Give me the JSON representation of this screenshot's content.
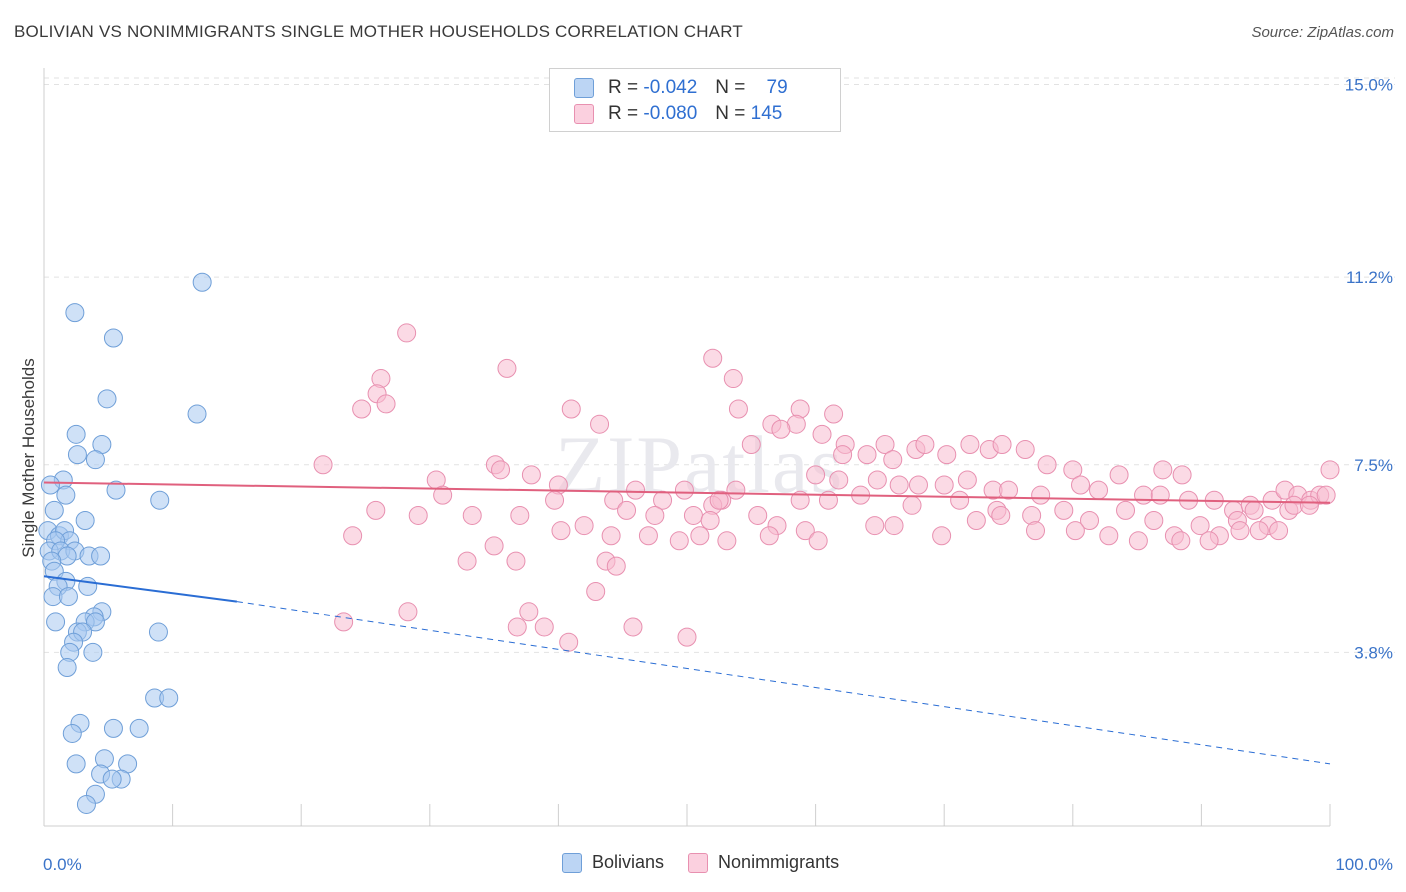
{
  "title": "BOLIVIAN VS NONIMMIGRANTS SINGLE MOTHER HOUSEHOLDS CORRELATION CHART",
  "source": "Source: ZipAtlas.com",
  "watermark": "ZIPatlas",
  "legend": {
    "rows": [
      {
        "r_label": "R =",
        "r_value": "-0.042",
        "n_label": "N =",
        "n_value": "79",
        "color": "#a8c8f0",
        "stroke": "#6f9fd8"
      },
      {
        "r_label": "R =",
        "r_value": "-0.080",
        "n_label": "N =",
        "n_value": "145",
        "color": "#f8bcd0",
        "stroke": "#e890b0"
      }
    ]
  },
  "bottom_legend": [
    "Bolivians",
    "Nonimmigrants"
  ],
  "chart_data": {
    "type": "scatter",
    "title": "BOLIVIAN VS NONIMMIGRANTS SINGLE MOTHER HOUSEHOLDS CORRELATION CHART",
    "xlabel": "",
    "ylabel": "Single Mother Households",
    "xlim": [
      0,
      100
    ],
    "ylim": [
      0,
      15.5
    ],
    "x_tick_labels": [
      "0.0%",
      "100.0%"
    ],
    "y_ticks": [
      3.8,
      7.5,
      11.2,
      15.0
    ],
    "y_tick_labels": [
      "3.8%",
      "7.5%",
      "11.2%",
      "15.0%"
    ],
    "grid": "horizontal dashed",
    "legend_position": "top-center",
    "series": [
      {
        "name": "Bolivians",
        "color": "#a8c8f0",
        "stroke": "#6f9fd8",
        "trend": {
          "x0": 0,
          "y0": 5.3,
          "x1": 15,
          "y1": 4.8,
          "dash_to_x": 100,
          "dash_to_y": 1.6,
          "color": "#2a6dd4"
        },
        "points": [
          [
            12.3,
            11.1
          ],
          [
            2.4,
            10.5
          ],
          [
            5.4,
            10.0
          ],
          [
            4.9,
            8.8
          ],
          [
            11.9,
            8.5
          ],
          [
            2.5,
            8.1
          ],
          [
            4.5,
            7.9
          ],
          [
            2.6,
            7.7
          ],
          [
            4.0,
            7.6
          ],
          [
            1.5,
            7.2
          ],
          [
            5.6,
            7.0
          ],
          [
            1.7,
            6.9
          ],
          [
            9.0,
            6.8
          ],
          [
            0.5,
            7.1
          ],
          [
            0.8,
            6.6
          ],
          [
            3.2,
            6.4
          ],
          [
            0.3,
            6.2
          ],
          [
            1.2,
            6.1
          ],
          [
            1.6,
            6.2
          ],
          [
            2.0,
            6.0
          ],
          [
            0.9,
            6.0
          ],
          [
            0.4,
            5.8
          ],
          [
            1.3,
            5.8
          ],
          [
            2.4,
            5.8
          ],
          [
            1.8,
            5.7
          ],
          [
            0.6,
            5.6
          ],
          [
            3.5,
            5.7
          ],
          [
            4.4,
            5.7
          ],
          [
            0.8,
            5.4
          ],
          [
            1.7,
            5.2
          ],
          [
            1.1,
            5.1
          ],
          [
            3.4,
            5.1
          ],
          [
            0.7,
            4.9
          ],
          [
            1.9,
            4.9
          ],
          [
            4.5,
            4.6
          ],
          [
            3.9,
            4.5
          ],
          [
            3.2,
            4.4
          ],
          [
            4.0,
            4.4
          ],
          [
            0.9,
            4.4
          ],
          [
            2.6,
            4.2
          ],
          [
            3.0,
            4.2
          ],
          [
            8.9,
            4.2
          ],
          [
            2.3,
            4.0
          ],
          [
            2.0,
            3.8
          ],
          [
            3.8,
            3.8
          ],
          [
            1.8,
            3.5
          ],
          [
            8.6,
            2.9
          ],
          [
            9.7,
            2.9
          ],
          [
            2.8,
            2.4
          ],
          [
            5.4,
            2.3
          ],
          [
            7.4,
            2.3
          ],
          [
            2.2,
            2.2
          ],
          [
            4.7,
            1.7
          ],
          [
            2.5,
            1.6
          ],
          [
            6.5,
            1.6
          ],
          [
            4.4,
            1.4
          ],
          [
            6.0,
            1.3
          ],
          [
            5.3,
            1.3
          ],
          [
            4.0,
            1.0
          ],
          [
            3.3,
            0.8
          ]
        ]
      },
      {
        "name": "Nonimmigrants",
        "color": "#f8bcd0",
        "stroke": "#e890b0",
        "trend": {
          "x0": 0,
          "y0": 7.15,
          "x1": 100,
          "y1": 6.75,
          "color": "#e0607e"
        },
        "points": [
          [
            28.2,
            10.1
          ],
          [
            52.0,
            9.6
          ],
          [
            36.0,
            9.4
          ],
          [
            26.2,
            9.2
          ],
          [
            53.6,
            9.2
          ],
          [
            25.9,
            8.9
          ],
          [
            26.6,
            8.7
          ],
          [
            24.7,
            8.6
          ],
          [
            41.0,
            8.6
          ],
          [
            54.0,
            8.6
          ],
          [
            58.8,
            8.6
          ],
          [
            61.4,
            8.5
          ],
          [
            43.2,
            8.3
          ],
          [
            56.6,
            8.3
          ],
          [
            58.5,
            8.3
          ],
          [
            57.3,
            8.2
          ],
          [
            60.5,
            8.1
          ],
          [
            55.0,
            7.9
          ],
          [
            62.3,
            7.9
          ],
          [
            65.4,
            7.9
          ],
          [
            67.8,
            7.8
          ],
          [
            68.5,
            7.9
          ],
          [
            72.0,
            7.9
          ],
          [
            73.5,
            7.8
          ],
          [
            74.5,
            7.9
          ],
          [
            76.3,
            7.8
          ],
          [
            62.1,
            7.7
          ],
          [
            64.0,
            7.7
          ],
          [
            66.0,
            7.6
          ],
          [
            70.2,
            7.7
          ],
          [
            78.0,
            7.5
          ],
          [
            80.0,
            7.4
          ],
          [
            83.6,
            7.3
          ],
          [
            87.0,
            7.4
          ],
          [
            88.5,
            7.3
          ],
          [
            100.0,
            7.4
          ],
          [
            21.7,
            7.5
          ],
          [
            35.1,
            7.5
          ],
          [
            35.5,
            7.4
          ],
          [
            37.9,
            7.3
          ],
          [
            60.0,
            7.3
          ],
          [
            61.8,
            7.2
          ],
          [
            64.8,
            7.2
          ],
          [
            66.5,
            7.1
          ],
          [
            68.0,
            7.1
          ],
          [
            70.0,
            7.1
          ],
          [
            71.8,
            7.2
          ],
          [
            73.8,
            7.0
          ],
          [
            75.0,
            7.0
          ],
          [
            77.5,
            6.9
          ],
          [
            80.6,
            7.1
          ],
          [
            82.0,
            7.0
          ],
          [
            85.5,
            6.9
          ],
          [
            86.8,
            6.9
          ],
          [
            89.0,
            6.8
          ],
          [
            91.0,
            6.8
          ],
          [
            92.5,
            6.6
          ],
          [
            93.8,
            6.7
          ],
          [
            95.5,
            6.8
          ],
          [
            96.5,
            7.0
          ],
          [
            97.5,
            6.9
          ],
          [
            98.5,
            6.8
          ],
          [
            99.2,
            6.9
          ],
          [
            30.5,
            7.2
          ],
          [
            40.0,
            7.1
          ],
          [
            46.0,
            7.0
          ],
          [
            49.8,
            7.0
          ],
          [
            53.8,
            7.0
          ],
          [
            58.8,
            6.8
          ],
          [
            52.7,
            6.8
          ],
          [
            31.0,
            6.9
          ],
          [
            39.7,
            6.8
          ],
          [
            44.3,
            6.8
          ],
          [
            48.1,
            6.8
          ],
          [
            52.0,
            6.7
          ],
          [
            61.0,
            6.8
          ],
          [
            63.5,
            6.9
          ],
          [
            67.5,
            6.7
          ],
          [
            71.2,
            6.8
          ],
          [
            74.1,
            6.6
          ],
          [
            76.8,
            6.5
          ],
          [
            79.3,
            6.6
          ],
          [
            81.3,
            6.4
          ],
          [
            84.1,
            6.6
          ],
          [
            86.3,
            6.4
          ],
          [
            87.9,
            6.1
          ],
          [
            89.9,
            6.3
          ],
          [
            91.4,
            6.1
          ],
          [
            92.8,
            6.4
          ],
          [
            94.1,
            6.6
          ],
          [
            95.2,
            6.3
          ],
          [
            96.8,
            6.6
          ],
          [
            97.2,
            6.7
          ],
          [
            98.4,
            6.7
          ],
          [
            99.7,
            6.9
          ],
          [
            25.8,
            6.6
          ],
          [
            29.1,
            6.5
          ],
          [
            33.3,
            6.5
          ],
          [
            37.0,
            6.5
          ],
          [
            42.0,
            6.3
          ],
          [
            45.3,
            6.6
          ],
          [
            47.5,
            6.5
          ],
          [
            50.5,
            6.5
          ],
          [
            51.8,
            6.4
          ],
          [
            55.5,
            6.5
          ],
          [
            57.0,
            6.3
          ],
          [
            59.2,
            6.2
          ],
          [
            64.6,
            6.3
          ],
          [
            66.1,
            6.3
          ],
          [
            69.8,
            6.1
          ],
          [
            72.5,
            6.4
          ],
          [
            74.4,
            6.5
          ],
          [
            77.1,
            6.2
          ],
          [
            80.2,
            6.2
          ],
          [
            82.8,
            6.1
          ],
          [
            85.1,
            6.0
          ],
          [
            88.4,
            6.0
          ],
          [
            90.6,
            6.0
          ],
          [
            93.0,
            6.2
          ],
          [
            94.5,
            6.2
          ],
          [
            96.0,
            6.2
          ],
          [
            24.0,
            6.1
          ],
          [
            40.2,
            6.2
          ],
          [
            44.1,
            6.1
          ],
          [
            47.0,
            6.1
          ],
          [
            49.4,
            6.0
          ],
          [
            51.0,
            6.1
          ],
          [
            53.1,
            6.0
          ],
          [
            56.4,
            6.1
          ],
          [
            60.2,
            6.0
          ],
          [
            43.7,
            5.6
          ],
          [
            44.5,
            5.5
          ],
          [
            35.0,
            5.9
          ],
          [
            32.9,
            5.6
          ],
          [
            36.7,
            5.6
          ],
          [
            42.9,
            5.0
          ],
          [
            37.7,
            4.6
          ],
          [
            28.3,
            4.6
          ],
          [
            36.8,
            4.3
          ],
          [
            45.8,
            4.3
          ],
          [
            50.0,
            4.1
          ],
          [
            40.8,
            4.0
          ],
          [
            38.9,
            4.3
          ],
          [
            23.3,
            4.4
          ],
          [
            52.5,
            6.8
          ]
        ]
      }
    ]
  }
}
